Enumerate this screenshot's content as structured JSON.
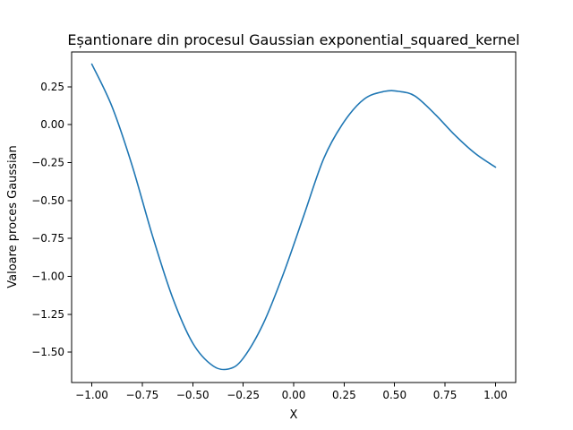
{
  "chart_data": {
    "type": "line",
    "title": "Eșantionare din procesul Gaussian exponential_squared_kernel",
    "xlabel": "X",
    "ylabel": "Valoare proces Gaussian",
    "xlim": [
      -1.1,
      1.1
    ],
    "ylim": [
      -1.7,
      0.48
    ],
    "grid": false,
    "x_ticks": [
      -1.0,
      -0.75,
      -0.5,
      -0.25,
      0.0,
      0.25,
      0.5,
      0.75,
      1.0
    ],
    "x_tick_labels": [
      "−1.00",
      "−0.75",
      "−0.50",
      "−0.25",
      "0.00",
      "0.25",
      "0.50",
      "0.75",
      "1.00"
    ],
    "y_ticks": [
      0.25,
      0.0,
      -0.25,
      -0.5,
      -0.75,
      -1.0,
      -1.25,
      -1.5
    ],
    "y_tick_labels": [
      "0.25",
      "0.00",
      "−0.25",
      "−0.50",
      "−0.75",
      "−1.00",
      "−1.25",
      "−1.50"
    ],
    "series": [
      {
        "color": "#1f77b4",
        "x": [
          -1.0,
          -0.9,
          -0.8,
          -0.7,
          -0.6,
          -0.5,
          -0.4,
          -0.32,
          -0.25,
          -0.15,
          -0.05,
          0.05,
          0.15,
          0.25,
          0.35,
          0.45,
          0.52,
          0.6,
          0.7,
          0.8,
          0.9,
          1.0
        ],
        "y": [
          0.4,
          0.12,
          -0.27,
          -0.73,
          -1.14,
          -1.44,
          -1.59,
          -1.61,
          -1.54,
          -1.31,
          -0.98,
          -0.6,
          -0.22,
          0.02,
          0.17,
          0.22,
          0.22,
          0.19,
          0.07,
          -0.07,
          -0.19,
          -0.28
        ]
      }
    ]
  }
}
